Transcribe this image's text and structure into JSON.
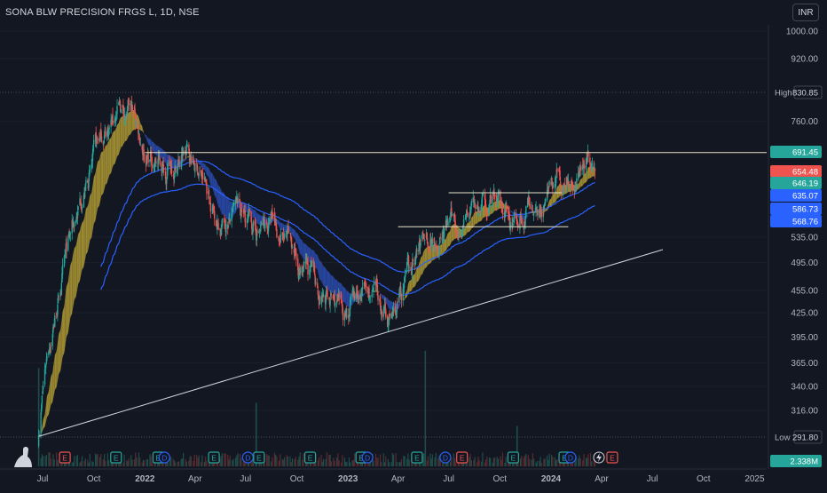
{
  "header": {
    "symbol_title": "SONA BLW PRECISION FRGS L, 1D, NSE",
    "currency_button": "INR"
  },
  "colors": {
    "background": "#131722",
    "axis_text": "#b2b5be",
    "candle_up": "#26a69a",
    "candle_down": "#ef5350",
    "ribbon_gold": "#c9b037",
    "ribbon_blue": "#2f55c8",
    "band_line": "#2962ff",
    "hline": "#e8e3c8",
    "trendline": "#d1d4dc"
  },
  "chart_data": {
    "type": "candlestick",
    "title": "SONA BLW PRECISION FRGS L, 1D, NSE",
    "y_axis": {
      "scale": "log",
      "ticks": [
        "1000.00",
        "920.00",
        "760.00",
        "535.00",
        "495.00",
        "455.00",
        "425.00",
        "395.00",
        "365.00",
        "340.00",
        "316.00"
      ],
      "tick_values": [
        1000,
        920,
        760,
        535,
        495,
        455,
        425,
        395,
        365,
        340,
        316
      ]
    },
    "x_axis": {
      "ticks": [
        "Jul",
        "Oct",
        "2022",
        "Apr",
        "Jul",
        "Oct",
        "2023",
        "Apr",
        "Jul",
        "Oct",
        "2024",
        "Apr",
        "Jul",
        "Oct",
        "2025"
      ],
      "tick_dates": [
        "2021-07-01",
        "2021-10-01",
        "2022-01-01",
        "2022-04-01",
        "2022-07-01",
        "2022-10-01",
        "2023-01-01",
        "2023-04-01",
        "2023-07-01",
        "2023-10-01",
        "2024-01-01",
        "2024-04-01",
        "2024-07-01",
        "2024-10-01",
        "2025-01-01"
      ],
      "bold_ticks": [
        "2022",
        "2023",
        "2024"
      ]
    },
    "price_path": [
      [
        "2021-06-24",
        300
      ],
      [
        "2021-07-10",
        385
      ],
      [
        "2021-08-10",
        490
      ],
      [
        "2021-09-10",
        610
      ],
      [
        "2021-10-15",
        720
      ],
      [
        "2021-11-15",
        790
      ],
      [
        "2021-12-10",
        770
      ],
      [
        "2022-01-05",
        690
      ],
      [
        "2022-02-10",
        660
      ],
      [
        "2022-03-15",
        690
      ],
      [
        "2022-04-10",
        650
      ],
      [
        "2022-05-15",
        560
      ],
      [
        "2022-06-20",
        570
      ],
      [
        "2022-07-20",
        540
      ],
      [
        "2022-08-20",
        560
      ],
      [
        "2022-09-20",
        510
      ],
      [
        "2022-10-20",
        475
      ],
      [
        "2022-11-20",
        450
      ],
      [
        "2022-12-20",
        425
      ],
      [
        "2023-01-25",
        445
      ],
      [
        "2023-02-15",
        440
      ],
      [
        "2023-03-20",
        415
      ],
      [
        "2023-04-20",
        470
      ],
      [
        "2023-05-20",
        540
      ],
      [
        "2023-06-20",
        545
      ],
      [
        "2023-07-20",
        560
      ],
      [
        "2023-08-20",
        590
      ],
      [
        "2023-09-20",
        590
      ],
      [
        "2023-10-15",
        555
      ],
      [
        "2023-11-15",
        585
      ],
      [
        "2023-12-15",
        600
      ],
      [
        "2024-01-15",
        650
      ],
      [
        "2024-02-15",
        640
      ],
      [
        "2024-03-05",
        700
      ],
      [
        "2024-03-20",
        654.48
      ]
    ],
    "price_labels": [
      {
        "label": "High",
        "value": "830.85",
        "color": "#131722",
        "text_color": "#d1d4dc",
        "type": "high"
      },
      {
        "label": "",
        "value": "691.45",
        "color": "#26a69a",
        "text_color": "#ffffff",
        "type": "hline"
      },
      {
        "label": "",
        "value": "654.48",
        "color": "#ef5350",
        "text_color": "#ffffff",
        "type": "last"
      },
      {
        "label": "",
        "value": "646.19",
        "color": "#26a69a",
        "text_color": "#ffffff",
        "type": "ma"
      },
      {
        "label": "",
        "value": "635.07",
        "color": "#2962ff",
        "text_color": "#ffffff",
        "type": "band"
      },
      {
        "label": "",
        "value": "586.73",
        "color": "#2962ff",
        "text_color": "#ffffff",
        "type": "band"
      },
      {
        "label": "",
        "value": "568.76",
        "color": "#2962ff",
        "text_color": "#ffffff",
        "type": "band"
      },
      {
        "label": "Low",
        "value": "291.80",
        "color": "#131722",
        "text_color": "#d1d4dc",
        "type": "low"
      },
      {
        "label": "",
        "value": "2.338M",
        "color": "#26a69a",
        "text_color": "#ffffff",
        "type": "volume"
      }
    ],
    "horizontal_levels": [
      {
        "value": 691.45,
        "from": "2022-01-01",
        "to": "2025-01-01"
      },
      {
        "value": 612,
        "from": "2023-07-01",
        "to": "2024-01-20"
      },
      {
        "value": 552,
        "from": "2023-04-01",
        "to": "2024-02-01"
      }
    ],
    "trendline": {
      "from": [
        "2021-06-24",
        292
      ],
      "to": [
        "2024-07-20",
        515
      ]
    },
    "volume_spikes": [
      {
        "date": "2022-07-20",
        "relative": 0.55
      },
      {
        "date": "2023-05-20",
        "relative": 1.0
      },
      {
        "date": "2021-06-24",
        "relative": 0.85
      },
      {
        "date": "2023-11-01",
        "relative": 0.35
      }
    ],
    "events": [
      {
        "type": "E",
        "date": "2021-08-10",
        "color": "#ef5350"
      },
      {
        "type": "E",
        "date": "2021-11-10",
        "color": "#26a69a"
      },
      {
        "type": "E",
        "date": "2022-01-25",
        "color": "#26a69a"
      },
      {
        "type": "D",
        "date": "2022-02-05",
        "color": "#2962ff"
      },
      {
        "type": "E",
        "date": "2022-05-05",
        "color": "#26a69a"
      },
      {
        "type": "D",
        "date": "2022-07-05",
        "color": "#2962ff"
      },
      {
        "type": "E",
        "date": "2022-07-25",
        "color": "#26a69a"
      },
      {
        "type": "E",
        "date": "2022-10-25",
        "color": "#26a69a"
      },
      {
        "type": "E",
        "date": "2023-01-25",
        "color": "#26a69a"
      },
      {
        "type": "D",
        "date": "2023-02-05",
        "color": "#2962ff"
      },
      {
        "type": "E",
        "date": "2023-05-05",
        "color": "#26a69a"
      },
      {
        "type": "D",
        "date": "2023-06-25",
        "color": "#2962ff"
      },
      {
        "type": "E",
        "date": "2023-07-25",
        "color": "#ef5350"
      },
      {
        "type": "E",
        "date": "2023-10-25",
        "color": "#26a69a"
      },
      {
        "type": "E",
        "date": "2024-01-25",
        "color": "#26a69a"
      },
      {
        "type": "D",
        "date": "2024-02-05",
        "color": "#2962ff"
      },
      {
        "type": "E",
        "date": "2024-04-20",
        "color": "#ef5350"
      }
    ]
  }
}
